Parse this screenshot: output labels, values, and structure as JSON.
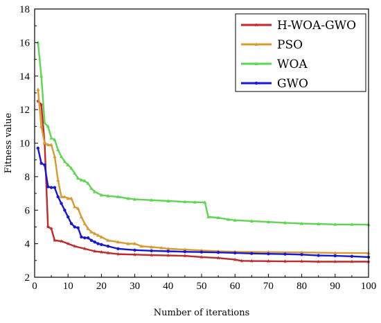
{
  "chart_data": {
    "type": "line",
    "title": "",
    "xlabel": "Number of iterations",
    "ylabel": "Fitness value",
    "xlim": [
      0,
      100
    ],
    "ylim": [
      2,
      18
    ],
    "x_ticks": [
      0,
      10,
      20,
      30,
      40,
      50,
      60,
      70,
      80,
      90,
      100
    ],
    "y_ticks": [
      2,
      4,
      6,
      8,
      10,
      12,
      14,
      16,
      18
    ],
    "grid": false,
    "legend_position": "top-right",
    "series": [
      {
        "name": "H-WOA-GWO",
        "color": "#c0282a",
        "marker": "star",
        "points": [
          [
            1,
            12.5
          ],
          [
            2,
            12.3
          ],
          [
            3,
            10.0
          ],
          [
            4,
            5.0
          ],
          [
            5,
            4.9
          ],
          [
            6,
            4.2
          ],
          [
            8,
            4.15
          ],
          [
            10,
            4.0
          ],
          [
            12,
            3.85
          ],
          [
            15,
            3.7
          ],
          [
            18,
            3.55
          ],
          [
            20,
            3.5
          ],
          [
            22,
            3.45
          ],
          [
            25,
            3.38
          ],
          [
            30,
            3.35
          ],
          [
            35,
            3.32
          ],
          [
            40,
            3.3
          ],
          [
            45,
            3.28
          ],
          [
            50,
            3.2
          ],
          [
            55,
            3.15
          ],
          [
            60,
            3.05
          ],
          [
            62,
            2.98
          ],
          [
            65,
            2.97
          ],
          [
            70,
            2.96
          ],
          [
            75,
            2.95
          ],
          [
            80,
            2.95
          ],
          [
            85,
            2.93
          ],
          [
            90,
            2.93
          ],
          [
            95,
            2.93
          ],
          [
            100,
            2.93
          ]
        ]
      },
      {
        "name": "PSO",
        "color": "#d89a30",
        "marker": "triangle",
        "points": [
          [
            1,
            13.2
          ],
          [
            2,
            11.0
          ],
          [
            3,
            10.0
          ],
          [
            4,
            9.9
          ],
          [
            5,
            9.9
          ],
          [
            6,
            9.2
          ],
          [
            7,
            7.8
          ],
          [
            8,
            6.8
          ],
          [
            9,
            6.8
          ],
          [
            10,
            6.7
          ],
          [
            11,
            6.7
          ],
          [
            12,
            6.2
          ],
          [
            13,
            6.1
          ],
          [
            14,
            5.6
          ],
          [
            15,
            5.2
          ],
          [
            16,
            4.9
          ],
          [
            17,
            4.7
          ],
          [
            18,
            4.6
          ],
          [
            19,
            4.5
          ],
          [
            20,
            4.4
          ],
          [
            22,
            4.2
          ],
          [
            25,
            4.1
          ],
          [
            28,
            4.0
          ],
          [
            30,
            4.0
          ],
          [
            32,
            3.85
          ],
          [
            35,
            3.8
          ],
          [
            38,
            3.75
          ],
          [
            40,
            3.7
          ],
          [
            45,
            3.65
          ],
          [
            50,
            3.6
          ],
          [
            55,
            3.55
          ],
          [
            60,
            3.52
          ],
          [
            70,
            3.5
          ],
          [
            80,
            3.48
          ],
          [
            90,
            3.45
          ],
          [
            100,
            3.44
          ]
        ]
      },
      {
        "name": "WOA",
        "color": "#5fd653",
        "marker": "triangle",
        "points": [
          [
            1,
            16.0
          ],
          [
            2,
            14.0
          ],
          [
            3,
            11.2
          ],
          [
            4,
            11.0
          ],
          [
            5,
            10.3
          ],
          [
            6,
            10.2
          ],
          [
            7,
            9.6
          ],
          [
            8,
            9.2
          ],
          [
            9,
            8.9
          ],
          [
            10,
            8.7
          ],
          [
            11,
            8.5
          ],
          [
            12,
            8.2
          ],
          [
            13,
            7.9
          ],
          [
            14,
            7.8
          ],
          [
            15,
            7.75
          ],
          [
            16,
            7.6
          ],
          [
            17,
            7.3
          ],
          [
            18,
            7.1
          ],
          [
            20,
            6.9
          ],
          [
            22,
            6.85
          ],
          [
            25,
            6.8
          ],
          [
            28,
            6.7
          ],
          [
            30,
            6.65
          ],
          [
            35,
            6.6
          ],
          [
            40,
            6.55
          ],
          [
            45,
            6.5
          ],
          [
            48,
            6.48
          ],
          [
            51,
            6.47
          ],
          [
            52,
            5.6
          ],
          [
            55,
            5.55
          ],
          [
            58,
            5.45
          ],
          [
            60,
            5.4
          ],
          [
            65,
            5.35
          ],
          [
            70,
            5.3
          ],
          [
            75,
            5.25
          ],
          [
            80,
            5.2
          ],
          [
            85,
            5.18
          ],
          [
            90,
            5.15
          ],
          [
            95,
            5.15
          ],
          [
            100,
            5.14
          ]
        ]
      },
      {
        "name": "GWO",
        "color": "#1616d6",
        "marker": "circle",
        "points": [
          [
            1,
            9.7
          ],
          [
            2,
            8.8
          ],
          [
            3,
            8.7
          ],
          [
            4,
            7.4
          ],
          [
            5,
            7.35
          ],
          [
            6,
            7.35
          ],
          [
            7,
            6.8
          ],
          [
            8,
            6.4
          ],
          [
            9,
            6.0
          ],
          [
            10,
            5.6
          ],
          [
            11,
            5.2
          ],
          [
            12,
            5.0
          ],
          [
            13,
            4.95
          ],
          [
            14,
            4.4
          ],
          [
            15,
            4.35
          ],
          [
            16,
            4.35
          ],
          [
            17,
            4.2
          ],
          [
            18,
            4.1
          ],
          [
            19,
            4.0
          ],
          [
            20,
            3.95
          ],
          [
            22,
            3.85
          ],
          [
            25,
            3.7
          ],
          [
            30,
            3.62
          ],
          [
            35,
            3.58
          ],
          [
            40,
            3.55
          ],
          [
            45,
            3.52
          ],
          [
            50,
            3.5
          ],
          [
            55,
            3.48
          ],
          [
            60,
            3.45
          ],
          [
            65,
            3.42
          ],
          [
            70,
            3.4
          ],
          [
            75,
            3.38
          ],
          [
            80,
            3.35
          ],
          [
            85,
            3.3
          ],
          [
            90,
            3.28
          ],
          [
            95,
            3.25
          ],
          [
            100,
            3.2
          ]
        ]
      }
    ]
  }
}
